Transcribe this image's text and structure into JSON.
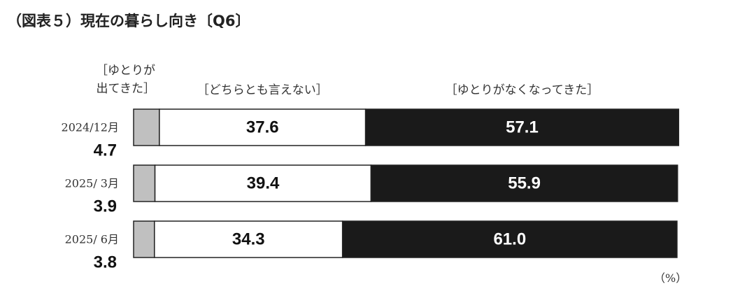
{
  "chart_data": {
    "type": "stacked-bar-horizontal",
    "title": "（図表５）現在の暮らし向き〔Q6〕",
    "unit_note": "（%）",
    "categories": [
      "2024/12月",
      "2025/ 3月",
      "2025/ 6月"
    ],
    "xlim": [
      0,
      100
    ],
    "series": [
      {
        "name": "［ゆとりが\n出てきた］",
        "color": "#c0c0c0",
        "values": [
          4.7,
          3.9,
          3.8
        ],
        "value_labels": [
          "4.7",
          "3.9",
          "3.8"
        ]
      },
      {
        "name": "［どちらとも言えない］",
        "color": "#ffffff",
        "values": [
          37.6,
          39.4,
          34.3
        ],
        "value_labels": [
          "37.6",
          "39.4",
          "34.3"
        ]
      },
      {
        "name": "［ゆとりがなくなってきた］",
        "color": "#1a1a1a",
        "values": [
          57.1,
          55.9,
          61.0
        ],
        "value_labels": [
          "57.1",
          "55.9",
          "61.0"
        ]
      }
    ]
  }
}
